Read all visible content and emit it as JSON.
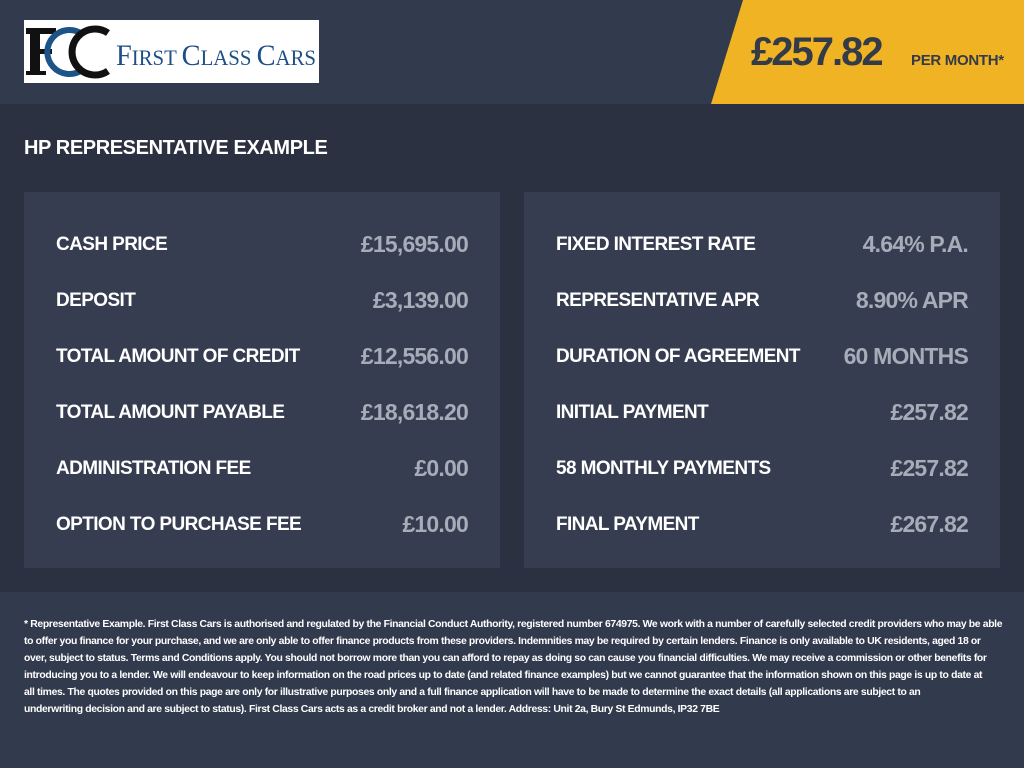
{
  "header": {
    "logo_text": "FCC FIRST CLASS CARS",
    "price": "£257.82",
    "per_month": "PER MONTH*",
    "colors": {
      "banner": "#f0b323",
      "header_bg": "#323a4e",
      "value_text": "#a7acb8"
    }
  },
  "title": "HP REPRESENTATIVE EXAMPLE",
  "left_panel": [
    {
      "label": "CASH PRICE",
      "value": "£15,695.00"
    },
    {
      "label": "DEPOSIT",
      "value": "£3,139.00"
    },
    {
      "label": "TOTAL AMOUNT OF CREDIT",
      "value": "£12,556.00"
    },
    {
      "label": "TOTAL AMOUNT PAYABLE",
      "value": "£18,618.20"
    },
    {
      "label": "ADMINISTRATION FEE",
      "value": "£0.00"
    },
    {
      "label": "OPTION TO PURCHASE FEE",
      "value": "£10.00"
    }
  ],
  "right_panel": [
    {
      "label": "FIXED INTEREST RATE",
      "value": "4.64% P.A."
    },
    {
      "label": "REPRESENTATIVE APR",
      "value": "8.90% APR"
    },
    {
      "label": "DURATION OF AGREEMENT",
      "value": "60 MONTHS"
    },
    {
      "label": "INITIAL PAYMENT",
      "value": "£257.82"
    },
    {
      "label": "58 MONTHLY PAYMENTS",
      "value": "£257.82"
    },
    {
      "label": "FINAL PAYMENT",
      "value": "£267.82"
    }
  ],
  "disclaimer": [
    "* Representative Example. First Class Cars is authorised and regulated by the Financial Conduct Authority, registered number 674975. We work with a number of carefully selected credit providers who may be able",
    "to offer you finance for your purchase, and we are only able to offer finance products from these providers. Indemnities may be required by certain lenders. Finance is only available to UK residents, aged 18 or",
    "over, subject to status. Terms and Conditions apply. You should not borrow more than you can afford to repay as doing so can cause you financial difficulties. We may receive a commission or other benefits for",
    "introducing you to a lender. We will endeavour to keep information on the road prices up to date (and related finance examples) but we cannot guarantee that the information shown on this page is up to date at",
    "all times. The quotes provided on this page are only for illustrative purposes only and a full finance application will have to be made to determine the exact details (all applications are subject to an",
    "underwriting decision and are subject to status). First Class Cars acts as a credit broker and not a lender. Address: Unit 2a, Bury St Edmunds, IP32 7BE"
  ]
}
